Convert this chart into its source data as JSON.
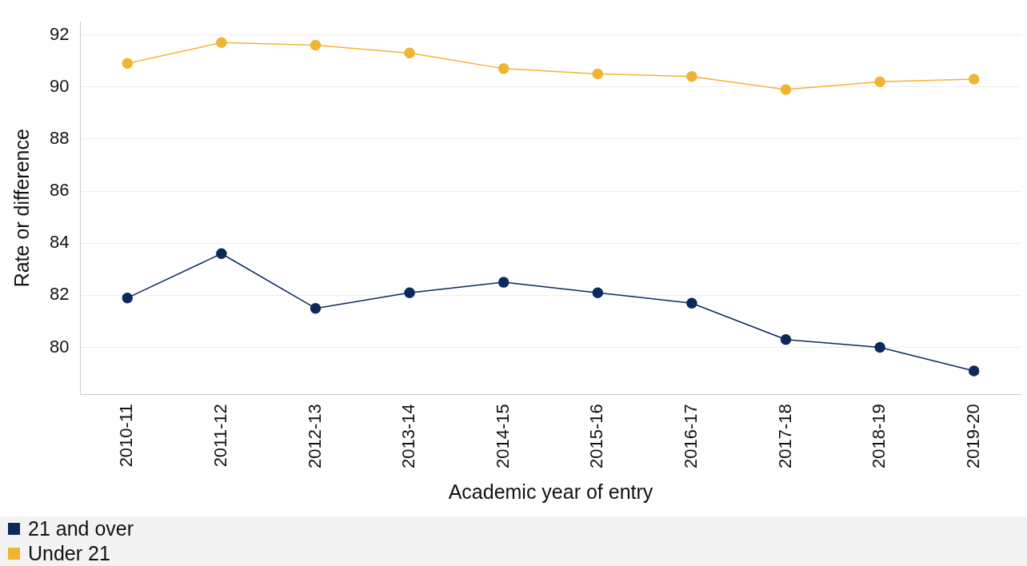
{
  "chart_data": {
    "type": "line",
    "xlabel": "Academic year of entry",
    "ylabel": "Rate or difference",
    "categories": [
      "2010-11",
      "2011-12",
      "2012-13",
      "2013-14",
      "2014-15",
      "2015-16",
      "2016-17",
      "2017-18",
      "2018-19",
      "2019-20"
    ],
    "series": [
      {
        "name": "21 and over",
        "color": "#0b2a5b",
        "values": [
          81.9,
          83.6,
          81.5,
          82.1,
          82.5,
          82.1,
          81.7,
          80.3,
          80.0,
          79.1
        ]
      },
      {
        "name": "Under 21",
        "color": "#f0b434",
        "values": [
          90.9,
          91.7,
          91.6,
          91.3,
          90.7,
          90.5,
          90.4,
          89.9,
          90.2,
          90.3
        ]
      }
    ],
    "ylim": [
      78.2,
      92.5
    ],
    "yticks": [
      80,
      82,
      84,
      86,
      88,
      90,
      92
    ],
    "grid": "y",
    "legend": "bottom",
    "marker": "circle",
    "line_style": "solid"
  }
}
